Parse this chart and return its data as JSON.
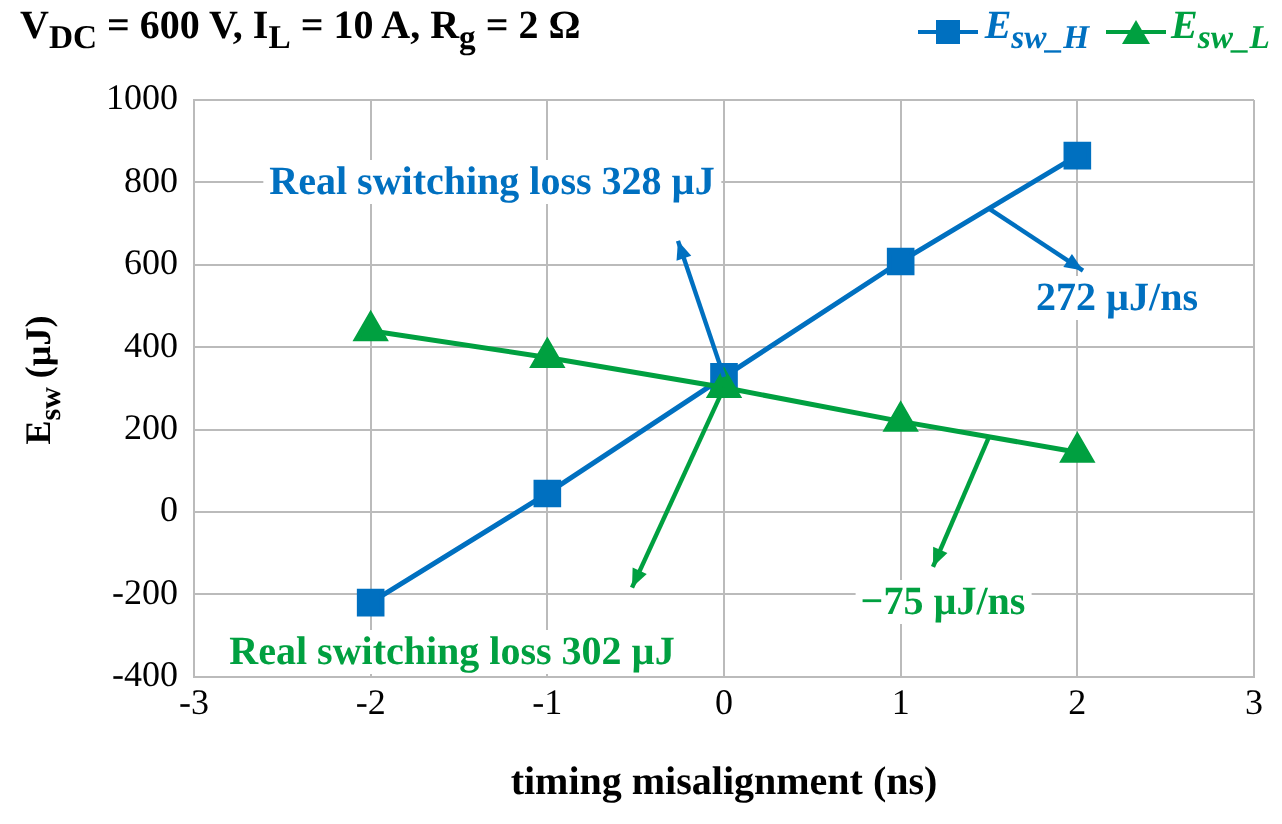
{
  "chart_data": {
    "type": "line",
    "title": "V$_{DC}$ = 600 V, I$_{L}$ = 10 A, R$_{g}$ = 2 Ω",
    "xlabel": "timing misalignment (ns)",
    "ylabel": "E$_{sw}$ (µJ)",
    "x": [
      -2,
      -1,
      0,
      1,
      2
    ],
    "series": [
      {
        "name": "E$_{sw_H}$",
        "color": "#0070c0",
        "marker": "square",
        "values": [
          -220,
          45,
          328,
          608,
          865
        ]
      },
      {
        "name": "E$_{sw_L}$",
        "color": "#00a040",
        "marker": "triangle",
        "values": [
          440,
          375,
          302,
          220,
          145
        ]
      }
    ],
    "xlim": [
      -3,
      3
    ],
    "xticks": [
      -3,
      -2,
      -1,
      0,
      1,
      2,
      3
    ],
    "ylim": [
      -400,
      1000
    ],
    "yticks": [
      -400,
      -200,
      0,
      200,
      400,
      600,
      800,
      1000
    ],
    "grid": true,
    "legend": "top right",
    "annotations": [
      "Real switching loss 328 µJ",
      "272 µJ/ns",
      "Real switching loss 302 µJ",
      "−75 µJ/ns"
    ]
  }
}
